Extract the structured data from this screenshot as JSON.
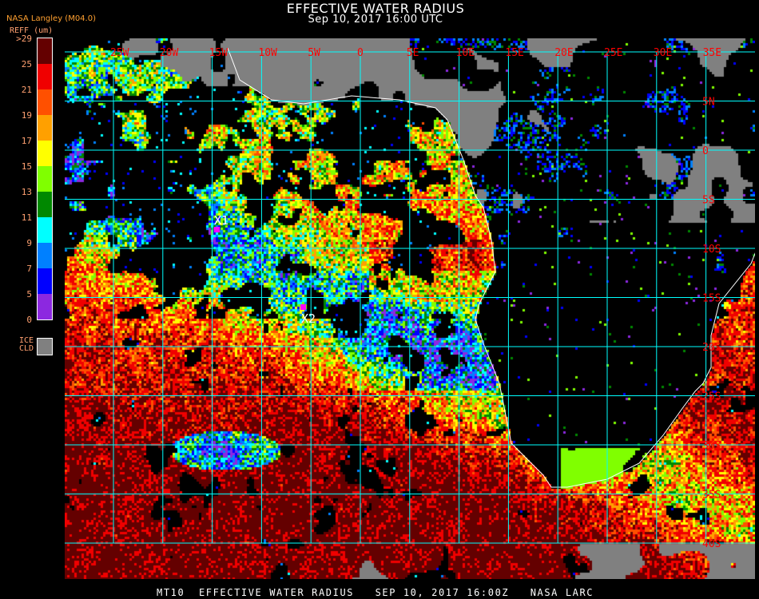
{
  "header": {
    "title": "EFFECTIVE WATER RADIUS",
    "subtitle": "Sep 10, 2017 16:00 UTC",
    "org": "NASA Langley (M04.0)"
  },
  "legend": {
    "title": "REFF (um)",
    "levels": [
      {
        "label": ">29",
        "color": "#640000"
      },
      {
        "label": "25",
        "color": "#f00000"
      },
      {
        "label": "21",
        "color": "#ff5000"
      },
      {
        "label": "19",
        "color": "#ffa000"
      },
      {
        "label": "17",
        "color": "#ffff00"
      },
      {
        "label": "15",
        "color": "#80ff00"
      },
      {
        "label": "13",
        "color": "#008800"
      },
      {
        "label": "11",
        "color": "#00ffff"
      },
      {
        "label": "9",
        "color": "#0080ff"
      },
      {
        "label": "7",
        "color": "#0000ff"
      },
      {
        "label": "5",
        "color": "#8c28e0"
      }
    ],
    "bottom_label": "0",
    "ice_label_1": "ICE",
    "ice_label_2": "CLD",
    "ice_color": "#808080"
  },
  "map": {
    "longitude_labels": [
      "25W",
      "20W",
      "15W",
      "10W",
      "5W",
      "0",
      "5E",
      "10E",
      "15E",
      "20E",
      "25E",
      "30E",
      "35E"
    ],
    "latitude_labels": [
      "5N",
      "0",
      "5S",
      "10S",
      "15S",
      "20S",
      "25S",
      "30S",
      "35S",
      "40S"
    ],
    "grid_color": "#00ffff",
    "label_color": "#ff0000",
    "coastline_color": "#ffffff",
    "markers": [
      {
        "label": "X1",
        "color": "#ff00ff"
      },
      {
        "label": "X2",
        "color": "#ff00ff"
      }
    ]
  },
  "footer": "MT10  EFFECTIVE WATER RADIUS   SEP 10, 2017 16:00Z   NASA LARC"
}
